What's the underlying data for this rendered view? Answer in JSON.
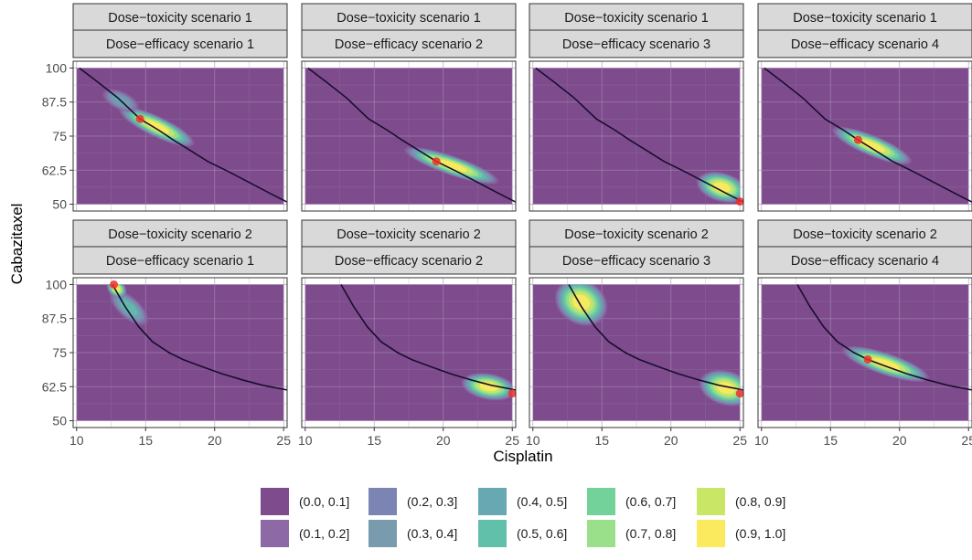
{
  "chart_data": {
    "type": "heatmap",
    "xlabel": "Cisplatin",
    "ylabel": "Cabazitaxel",
    "x_ticks": [
      10,
      15,
      20,
      25
    ],
    "x_tick_labels": [
      "10",
      "15",
      "20",
      "25"
    ],
    "y_ticks": [
      50,
      62.5,
      75,
      87.5,
      100
    ],
    "y_tick_labels": [
      "50",
      "62.5",
      "75",
      "87.5",
      "100"
    ],
    "xlim": [
      10,
      25
    ],
    "ylim": [
      50,
      100
    ],
    "grid": true,
    "legend_position": "bottom",
    "legend": {
      "labels": [
        "(0.0, 0.1]",
        "(0.1, 0.2]",
        "(0.2, 0.3]",
        "(0.3, 0.4]",
        "(0.4, 0.5]",
        "(0.5, 0.6]",
        "(0.6, 0.7]",
        "(0.7, 0.8]",
        "(0.8, 0.9]",
        "(0.9, 1.0]"
      ],
      "colors": [
        "#7e4c8d",
        "#8d6aa6",
        "#7b84b2",
        "#7a9aae",
        "#67a8b2",
        "#60c0aa",
        "#73d19a",
        "#9ae08a",
        "#c9e667",
        "#fbea5d"
      ]
    },
    "background_color": "#7e4c8d",
    "curve_color": "#1a0d2e",
    "marker_color": "#ee2d2d",
    "panels": [
      {
        "strip_top": "Dose−toxicity scenario 1",
        "strip_bottom": "Dose−efficacy scenario 1",
        "curve": "A",
        "contours": [
          {
            "x": 15.8,
            "y": 78.5,
            "a": 3.0,
            "b": 0.75,
            "slope": -2.4,
            "peak": 1.0
          },
          {
            "x": 13.2,
            "y": 88.0,
            "a": 1.5,
            "b": 0.7,
            "slope": -2.4,
            "peak": 0.45
          }
        ],
        "point": {
          "x": 14.6,
          "y": 81.3
        }
      },
      {
        "strip_top": "Dose−toxicity scenario 1",
        "strip_bottom": "Dose−efficacy scenario 2",
        "curve": "A",
        "contours": [
          {
            "x": 20.6,
            "y": 64.2,
            "a": 3.6,
            "b": 0.7,
            "slope": -1.75,
            "peak": 1.0
          }
        ],
        "point": {
          "x": 19.5,
          "y": 65.7
        }
      },
      {
        "strip_top": "Dose−toxicity scenario 1",
        "strip_bottom": "Dose−efficacy scenario 3",
        "curve": "A",
        "contours": [
          {
            "x": 23.7,
            "y": 56.2,
            "a": 1.9,
            "b": 1.05,
            "slope": -1.45,
            "peak": 1.0
          },
          {
            "x": 11.0,
            "y": 99.7,
            "a": 0.5,
            "b": 0.4,
            "slope": 0,
            "peak": 0.12
          }
        ],
        "point": {
          "x": 25.0,
          "y": 51.0
        }
      },
      {
        "strip_top": "Dose−toxicity scenario 1",
        "strip_bottom": "Dose−efficacy scenario 4",
        "curve": "A",
        "contours": [
          {
            "x": 18.0,
            "y": 71.5,
            "a": 3.1,
            "b": 0.75,
            "slope": -2.1,
            "peak": 1.0
          }
        ],
        "point": {
          "x": 17.0,
          "y": 73.6
        }
      },
      {
        "strip_top": "Dose−toxicity scenario 2",
        "strip_bottom": "Dose−efficacy scenario 1",
        "curve": "B",
        "contours": [
          {
            "x": 13.8,
            "y": 91.5,
            "a": 1.8,
            "b": 0.8,
            "slope": -4.5,
            "peak": 0.55
          },
          {
            "x": 12.9,
            "y": 98.5,
            "a": 0.8,
            "b": 0.6,
            "slope": -4.5,
            "peak": 1.0
          }
        ],
        "point": {
          "x": 12.7,
          "y": 100.0
        }
      },
      {
        "strip_top": "Dose−toxicity scenario 2",
        "strip_bottom": "Dose−efficacy scenario 2",
        "curve": "B",
        "contours": [
          {
            "x": 23.3,
            "y": 62.5,
            "a": 2.0,
            "b": 0.95,
            "slope": -0.9,
            "peak": 1.0
          }
        ],
        "point": {
          "x": 25.0,
          "y": 60.0
        }
      },
      {
        "strip_top": "Dose−toxicity scenario 2",
        "strip_bottom": "Dose−efficacy scenario 3",
        "curve": "B",
        "contours": [
          {
            "x": 13.5,
            "y": 93.5,
            "a": 2.0,
            "b": 1.6,
            "slope": -3.0,
            "peak": 1.0
          },
          {
            "x": 24.0,
            "y": 62.0,
            "a": 2.0,
            "b": 1.25,
            "slope": -1.4,
            "peak": 1.0
          }
        ],
        "point": {
          "x": 25.0,
          "y": 60.0
        }
      },
      {
        "strip_top": "Dose−toxicity scenario 2",
        "strip_bottom": "Dose−efficacy scenario 4",
        "curve": "B",
        "contours": [
          {
            "x": 19.0,
            "y": 70.8,
            "a": 3.3,
            "b": 0.8,
            "slope": -1.7,
            "peak": 1.0
          }
        ],
        "point": {
          "x": 17.7,
          "y": 72.5
        }
      }
    ]
  }
}
